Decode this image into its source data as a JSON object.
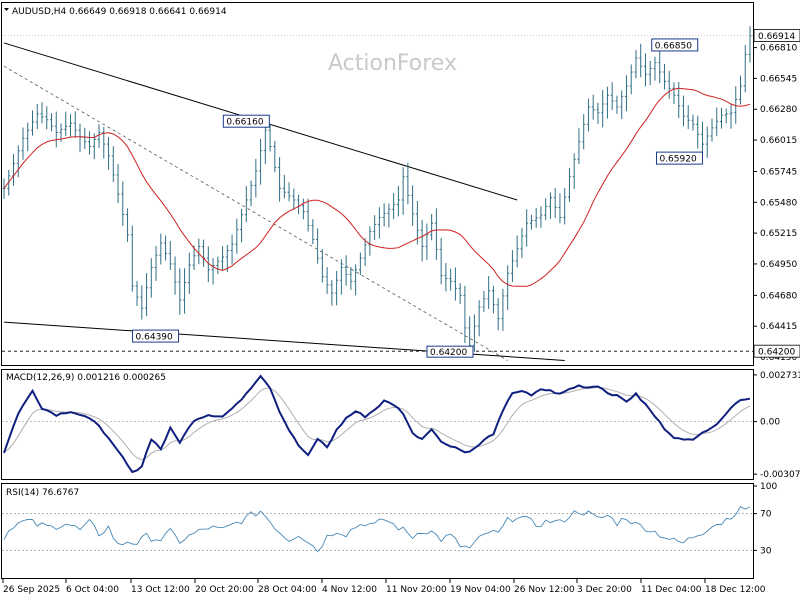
{
  "header": {
    "symbol_info": "AUDUSD,H4  0.66649 0.66918 0.66641 0.66914",
    "watermark": "ActionForex"
  },
  "colors": {
    "candle": "#2f6f86",
    "ma": "#d02020",
    "macd": "#102080",
    "signal": "#b0b0b0",
    "rsi": "#4a8ab8",
    "trend": "#000000"
  },
  "chart_data": [
    {
      "type": "candlestick",
      "ylim": [
        0.6415,
        0.6703
      ],
      "yticks": [
        "0.66810",
        "0.66545",
        "0.66280",
        "0.66015",
        "0.65745",
        "0.65480",
        "0.65215",
        "0.64950",
        "0.64680",
        "0.64415",
        "0.64150"
      ],
      "last_price": "0.66914",
      "support_level": "0.64200",
      "x_labels": [
        "26 Sep 2025",
        "6 Oct 04:00",
        "13 Oct 12:00",
        "20 Oct 20:00",
        "28 Oct 04:00",
        "4 Nov 12:00",
        "11 Nov 20:00",
        "19 Nov 04:00",
        "26 Nov 12:00",
        "3 Dec 20:00",
        "11 Dec 04:00",
        "18 Dec 12:00"
      ],
      "annotations": [
        {
          "text": "0.66850",
          "value": 0.6685
        },
        {
          "text": "0.66160",
          "value": 0.6616
        },
        {
          "text": "0.65920",
          "value": 0.6592
        },
        {
          "text": "0.64390",
          "value": 0.6439
        },
        {
          "text": "0.64200",
          "value": 0.642
        }
      ],
      "anchors": [
        [
          0,
          0.656
        ],
        [
          4,
          0.6603
        ],
        [
          7,
          0.6624
        ],
        [
          9,
          0.6619
        ],
        [
          11,
          0.6608
        ],
        [
          14,
          0.6616
        ],
        [
          16,
          0.6604
        ],
        [
          18,
          0.6596
        ],
        [
          20,
          0.6608
        ],
        [
          22,
          0.6588
        ],
        [
          24,
          0.6555
        ],
        [
          26,
          0.652
        ],
        [
          27,
          0.6476
        ],
        [
          29,
          0.6457
        ],
        [
          31,
          0.6492
        ],
        [
          33,
          0.6513
        ],
        [
          35,
          0.6495
        ],
        [
          37,
          0.6464
        ],
        [
          39,
          0.6494
        ],
        [
          41,
          0.651
        ],
        [
          43,
          0.649
        ],
        [
          46,
          0.6501
        ],
        [
          48,
          0.6512
        ],
        [
          51,
          0.655
        ],
        [
          53,
          0.6575
        ],
        [
          55,
          0.661
        ],
        [
          56,
          0.6596
        ],
        [
          58,
          0.656
        ],
        [
          61,
          0.655
        ],
        [
          63,
          0.654
        ],
        [
          65,
          0.6516
        ],
        [
          67,
          0.6484
        ],
        [
          69,
          0.647
        ],
        [
          71,
          0.6492
        ],
        [
          73,
          0.648
        ],
        [
          75,
          0.65
        ],
        [
          77,
          0.6523
        ],
        [
          79,
          0.6535
        ],
        [
          81,
          0.6542
        ],
        [
          83,
          0.655
        ],
        [
          84,
          0.657
        ],
        [
          86,
          0.6538
        ],
        [
          88,
          0.651
        ],
        [
          90,
          0.653
        ],
        [
          92,
          0.6485
        ],
        [
          94,
          0.648
        ],
        [
          96,
          0.6468
        ],
        [
          97,
          0.644
        ],
        [
          98,
          0.6425
        ],
        [
          100,
          0.6458
        ],
        [
          102,
          0.6472
        ],
        [
          104,
          0.6448
        ],
        [
          106,
          0.6487
        ],
        [
          108,
          0.6508
        ],
        [
          110,
          0.653
        ],
        [
          113,
          0.6537
        ],
        [
          115,
          0.6552
        ],
        [
          117,
          0.6535
        ],
        [
          119,
          0.657
        ],
        [
          121,
          0.66
        ],
        [
          123,
          0.663
        ],
        [
          125,
          0.6625
        ],
        [
          127,
          0.664
        ],
        [
          129,
          0.663
        ],
        [
          131,
          0.6648
        ],
        [
          133,
          0.6672
        ],
        [
          135,
          0.6658
        ],
        [
          137,
          0.6668
        ],
        [
          139,
          0.6652
        ],
        [
          141,
          0.664
        ],
        [
          143,
          0.6622
        ],
        [
          145,
          0.6615
        ],
        [
          147,
          0.6598
        ],
        [
          149,
          0.6612
        ],
        [
          151,
          0.6623
        ],
        [
          153,
          0.6625
        ],
        [
          155,
          0.6648
        ],
        [
          156,
          0.6675
        ],
        [
          157,
          0.6691
        ]
      ],
      "trendlines": [
        {
          "from": [
            0,
            0.6685
          ],
          "to": [
            108,
            0.655
          ]
        },
        {
          "from": [
            0,
            0.6445
          ],
          "to": [
            118,
            0.6412
          ]
        }
      ],
      "dashed_trendline": {
        "from": [
          0,
          0.6665
        ],
        "to": [
          106,
          0.6412
        ]
      },
      "ma_period": 20
    },
    {
      "type": "line",
      "title": "MACD(12,26,9) 0.001216 0.000265",
      "ylim": [
        -0.0033,
        0.0029
      ],
      "yticks": [
        "0.002731",
        "0.00",
        "-0.003077"
      ],
      "anchors": [
        [
          0,
          -0.0018
        ],
        [
          3,
          0.0005
        ],
        [
          6,
          0.0018
        ],
        [
          8,
          0.0008
        ],
        [
          11,
          0.0004
        ],
        [
          14,
          0.0006
        ],
        [
          17,
          0.0003
        ],
        [
          20,
          -0.0002
        ],
        [
          23,
          -0.0014
        ],
        [
          25,
          -0.0021
        ],
        [
          27,
          -0.003
        ],
        [
          29,
          -0.0026
        ],
        [
          31,
          -0.001
        ],
        [
          33,
          -0.0016
        ],
        [
          35,
          -0.0004
        ],
        [
          37,
          -0.0012
        ],
        [
          40,
          0.0001
        ],
        [
          43,
          0.0004
        ],
        [
          46,
          0.0003
        ],
        [
          49,
          0.001
        ],
        [
          52,
          0.002
        ],
        [
          54,
          0.0027
        ],
        [
          56,
          0.002
        ],
        [
          58,
          0.0006
        ],
        [
          60,
          -0.0005
        ],
        [
          62,
          -0.0014
        ],
        [
          64,
          -0.002
        ],
        [
          66,
          -0.001
        ],
        [
          68,
          -0.0015
        ],
        [
          70,
          -0.0005
        ],
        [
          72,
          0.0002
        ],
        [
          74,
          0.0006
        ],
        [
          76,
          0.0003
        ],
        [
          78,
          0.0007
        ],
        [
          80,
          0.0012
        ],
        [
          82,
          0.001
        ],
        [
          84,
          0.0005
        ],
        [
          86,
          -0.0007
        ],
        [
          88,
          -0.001
        ],
        [
          90,
          -0.0004
        ],
        [
          92,
          -0.0012
        ],
        [
          95,
          -0.0015
        ],
        [
          97,
          -0.0018
        ],
        [
          99,
          -0.0016
        ],
        [
          101,
          -0.0011
        ],
        [
          103,
          -0.0007
        ],
        [
          105,
          0.0006
        ],
        [
          107,
          0.0017
        ],
        [
          109,
          0.0018
        ],
        [
          111,
          0.0015
        ],
        [
          113,
          0.0019
        ],
        [
          115,
          0.0018
        ],
        [
          117,
          0.0016
        ],
        [
          119,
          0.0019
        ],
        [
          121,
          0.0021
        ],
        [
          123,
          0.002
        ],
        [
          125,
          0.0021
        ],
        [
          127,
          0.0017
        ],
        [
          129,
          0.0015
        ],
        [
          131,
          0.0012
        ],
        [
          133,
          0.0016
        ],
        [
          135,
          0.001
        ],
        [
          137,
          0.0003
        ],
        [
          139,
          -0.0004
        ],
        [
          141,
          -0.0009
        ],
        [
          143,
          -0.0011
        ],
        [
          145,
          -0.001
        ],
        [
          147,
          -0.0006
        ],
        [
          149,
          -0.0004
        ],
        [
          151,
          0.0002
        ],
        [
          153,
          0.0008
        ],
        [
          155,
          0.0013
        ]
      ]
    },
    {
      "type": "line",
      "title": "RSI(14) 76.6767",
      "ylim": [
        0,
        100
      ],
      "yticks": [
        "100",
        "70",
        "30",
        "0"
      ],
      "anchors": [
        [
          0,
          45
        ],
        [
          2,
          58
        ],
        [
          5,
          62
        ],
        [
          7,
          58
        ],
        [
          10,
          55
        ],
        [
          13,
          60
        ],
        [
          16,
          52
        ],
        [
          18,
          60
        ],
        [
          20,
          48
        ],
        [
          22,
          55
        ],
        [
          24,
          35
        ],
        [
          26,
          40
        ],
        [
          28,
          38
        ],
        [
          30,
          45
        ],
        [
          33,
          42
        ],
        [
          35,
          50
        ],
        [
          37,
          40
        ],
        [
          40,
          48
        ],
        [
          43,
          55
        ],
        [
          46,
          52
        ],
        [
          49,
          60
        ],
        [
          52,
          68
        ],
        [
          54,
          73
        ],
        [
          56,
          62
        ],
        [
          58,
          50
        ],
        [
          60,
          42
        ],
        [
          62,
          48
        ],
        [
          64,
          40
        ],
        [
          66,
          30
        ],
        [
          68,
          45
        ],
        [
          70,
          52
        ],
        [
          72,
          48
        ],
        [
          74,
          56
        ],
        [
          76,
          60
        ],
        [
          78,
          57
        ],
        [
          80,
          64
        ],
        [
          82,
          58
        ],
        [
          84,
          52
        ],
        [
          86,
          45
        ],
        [
          88,
          52
        ],
        [
          90,
          50
        ],
        [
          92,
          42
        ],
        [
          94,
          46
        ],
        [
          96,
          35
        ],
        [
          98,
          32
        ],
        [
          100,
          42
        ],
        [
          102,
          50
        ],
        [
          104,
          48
        ],
        [
          106,
          62
        ],
        [
          108,
          68
        ],
        [
          110,
          63
        ],
        [
          112,
          58
        ],
        [
          115,
          62
        ],
        [
          117,
          60
        ],
        [
          119,
          68
        ],
        [
          121,
          73
        ],
        [
          123,
          70
        ],
        [
          125,
          64
        ],
        [
          127,
          68
        ],
        [
          129,
          60
        ],
        [
          131,
          66
        ],
        [
          133,
          58
        ],
        [
          135,
          55
        ],
        [
          137,
          50
        ],
        [
          139,
          45
        ],
        [
          141,
          40
        ],
        [
          143,
          38
        ],
        [
          145,
          45
        ],
        [
          147,
          50
        ],
        [
          149,
          58
        ],
        [
          151,
          60
        ],
        [
          153,
          68
        ],
        [
          155,
          74
        ],
        [
          157,
          78
        ]
      ]
    }
  ]
}
